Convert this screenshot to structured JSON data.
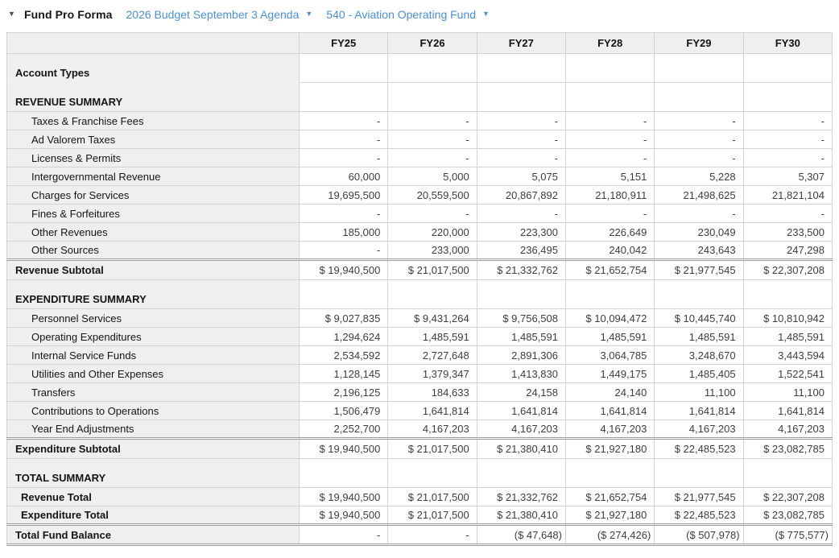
{
  "header": {
    "title": "Fund Pro Forma",
    "budget_selector": "2026 Budget September 3 Agenda",
    "fund_selector": "540 - Aviation Operating Fund"
  },
  "icons": {
    "collapse_caret": "▼",
    "dropdown_caret": "▼"
  },
  "colors": {
    "link_blue": "#4a90d2",
    "header_row_bg": "#efefef",
    "label_column_bg": "#efefef",
    "grid_border": "#d2d2d2",
    "double_border": "#9b9b9b",
    "value_text": "#3d3d3d"
  },
  "table": {
    "columns": [
      "FY25",
      "FY26",
      "FY27",
      "FY28",
      "FY29",
      "FY30"
    ],
    "rows": [
      {
        "type": "section",
        "indent": 0,
        "no_label_border": true,
        "label": "Account Types",
        "values": [
          "",
          "",
          "",
          "",
          "",
          ""
        ]
      },
      {
        "type": "section",
        "indent": 0,
        "label": "REVENUE SUMMARY",
        "values": [
          "",
          "",
          "",
          "",
          "",
          ""
        ]
      },
      {
        "type": "data",
        "indent": 2,
        "label": "Taxes & Franchise Fees",
        "values": [
          "-",
          "-",
          "-",
          "-",
          "-",
          "-"
        ]
      },
      {
        "type": "data",
        "indent": 2,
        "label": "Ad Valorem Taxes",
        "values": [
          "-",
          "-",
          "-",
          "-",
          "-",
          "-"
        ]
      },
      {
        "type": "data",
        "indent": 2,
        "label": "Licenses & Permits",
        "values": [
          "-",
          "-",
          "-",
          "-",
          "-",
          "-"
        ]
      },
      {
        "type": "data",
        "indent": 2,
        "label": "Intergovernmental Revenue",
        "values": [
          "60,000",
          "5,000",
          "5,075",
          "5,151",
          "5,228",
          "5,307"
        ]
      },
      {
        "type": "data",
        "indent": 2,
        "label": "Charges for Services",
        "values": [
          "19,695,500",
          "20,559,500",
          "20,867,892",
          "21,180,911",
          "21,498,625",
          "21,821,104"
        ]
      },
      {
        "type": "data",
        "indent": 2,
        "label": "Fines & Forfeitures",
        "values": [
          "-",
          "-",
          "-",
          "-",
          "-",
          "-"
        ]
      },
      {
        "type": "data",
        "indent": 2,
        "label": "Other Revenues",
        "values": [
          "185,000",
          "220,000",
          "223,300",
          "226,649",
          "230,049",
          "233,500"
        ]
      },
      {
        "type": "data",
        "indent": 2,
        "label": "Other Sources",
        "values": [
          "-",
          "233,000",
          "236,495",
          "240,042",
          "243,643",
          "247,298"
        ]
      },
      {
        "type": "subtotal",
        "indent": 0,
        "label": "Revenue Subtotal",
        "values": [
          "$ 19,940,500",
          "$ 21,017,500",
          "$ 21,332,762",
          "$ 21,652,754",
          "$ 21,977,545",
          "$ 22,307,208"
        ]
      },
      {
        "type": "section",
        "indent": 0,
        "label": "EXPENDITURE SUMMARY",
        "values": [
          "",
          "",
          "",
          "",
          "",
          ""
        ]
      },
      {
        "type": "data",
        "indent": 2,
        "label": "Personnel Services",
        "values": [
          "$ 9,027,835",
          "$ 9,431,264",
          "$ 9,756,508",
          "$ 10,094,472",
          "$ 10,445,740",
          "$ 10,810,942"
        ]
      },
      {
        "type": "data",
        "indent": 2,
        "label": "Operating Expenditures",
        "values": [
          "1,294,624",
          "1,485,591",
          "1,485,591",
          "1,485,591",
          "1,485,591",
          "1,485,591"
        ]
      },
      {
        "type": "data",
        "indent": 2,
        "label": "Internal Service Funds",
        "values": [
          "2,534,592",
          "2,727,648",
          "2,891,306",
          "3,064,785",
          "3,248,670",
          "3,443,594"
        ]
      },
      {
        "type": "data",
        "indent": 2,
        "label": "Utilities and Other Expenses",
        "values": [
          "1,128,145",
          "1,379,347",
          "1,413,830",
          "1,449,175",
          "1,485,405",
          "1,522,541"
        ]
      },
      {
        "type": "data",
        "indent": 2,
        "label": "Transfers",
        "values": [
          "2,196,125",
          "184,633",
          "24,158",
          "24,140",
          "11,100",
          "11,100"
        ]
      },
      {
        "type": "data",
        "indent": 2,
        "label": "Contributions to Operations",
        "values": [
          "1,506,479",
          "1,641,814",
          "1,641,814",
          "1,641,814",
          "1,641,814",
          "1,641,814"
        ]
      },
      {
        "type": "data",
        "indent": 2,
        "label": "Year End Adjustments",
        "values": [
          "2,252,700",
          "4,167,203",
          "4,167,203",
          "4,167,203",
          "4,167,203",
          "4,167,203"
        ]
      },
      {
        "type": "subtotal",
        "indent": 0,
        "label": "Expenditure Subtotal",
        "values": [
          "$ 19,940,500",
          "$ 21,017,500",
          "$ 21,380,410",
          "$ 21,927,180",
          "$ 22,485,523",
          "$ 23,082,785"
        ]
      },
      {
        "type": "section",
        "indent": 0,
        "label": "TOTAL SUMMARY",
        "values": [
          "",
          "",
          "",
          "",
          "",
          ""
        ]
      },
      {
        "type": "total",
        "indent": 1,
        "label": "Revenue Total",
        "values": [
          "$ 19,940,500",
          "$ 21,017,500",
          "$ 21,332,762",
          "$ 21,652,754",
          "$ 21,977,545",
          "$ 22,307,208"
        ]
      },
      {
        "type": "total",
        "indent": 1,
        "label": "Expenditure Total",
        "values": [
          "$ 19,940,500",
          "$ 21,017,500",
          "$ 21,380,410",
          "$ 21,927,180",
          "$ 22,485,523",
          "$ 23,082,785"
        ]
      },
      {
        "type": "grand",
        "indent": 0,
        "label": "Total Fund Balance",
        "values": [
          "-",
          "-",
          "($ 47,648)",
          "($ 274,426)",
          "($ 507,978)",
          "($ 775,577)"
        ]
      }
    ]
  }
}
